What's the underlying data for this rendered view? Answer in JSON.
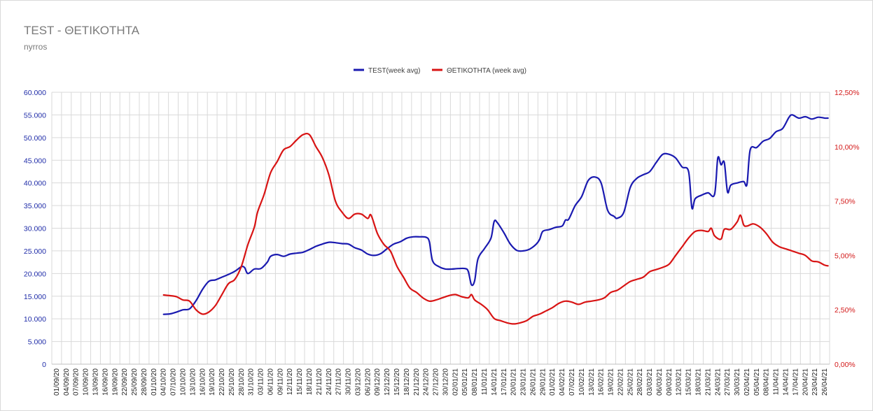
{
  "chart_data": {
    "type": "line",
    "title": "TEST - ΘΕΤΙΚΟΤΗΤΑ",
    "subtitle": "nyrros",
    "legend_position": "top-center",
    "grid": true,
    "colors": {
      "test": "#1a1ab0",
      "positivity": "#d81414",
      "grid": "#d9d9d9",
      "left_axis": "#1f2ca8",
      "right_axis": "#d31919"
    },
    "y_left": {
      "min": 0,
      "max": 60000,
      "tick_labels": [
        "0",
        "5.000",
        "10.000",
        "15.000",
        "20.000",
        "25.000",
        "30.000",
        "35.000",
        "40.000",
        "45.000",
        "50.000",
        "55.000",
        "60.000"
      ]
    },
    "y_right": {
      "min": 0,
      "max": 12.5,
      "tick_labels": [
        "0,00%",
        "2,50%",
        "5,00%",
        "7,50%",
        "10,00%",
        "12,50%"
      ]
    },
    "x_tick_labels": [
      "01/09/20",
      "04/09/20",
      "07/09/20",
      "10/09/20",
      "13/09/20",
      "16/09/20",
      "19/09/20",
      "22/09/20",
      "25/09/20",
      "28/09/20",
      "01/10/20",
      "04/10/20",
      "07/10/20",
      "10/10/20",
      "13/10/20",
      "16/10/20",
      "19/10/20",
      "22/10/20",
      "25/10/20",
      "28/10/20",
      "31/10/20",
      "03/11/20",
      "06/11/20",
      "09/11/20",
      "12/11/20",
      "15/11/20",
      "18/11/20",
      "21/11/20",
      "24/11/20",
      "27/11/20",
      "30/11/20",
      "03/12/20",
      "06/12/20",
      "09/12/20",
      "12/12/20",
      "15/12/20",
      "18/12/20",
      "21/12/20",
      "24/12/20",
      "27/12/20",
      "30/12/20",
      "02/01/21",
      "05/01/21",
      "08/01/21",
      "11/01/21",
      "14/01/21",
      "17/01/21",
      "20/01/21",
      "23/01/21",
      "26/01/21",
      "29/01/21",
      "01/02/21",
      "04/02/21",
      "07/02/21",
      "10/02/21",
      "13/02/21",
      "16/02/21",
      "19/02/21",
      "22/02/21",
      "25/02/21",
      "28/02/21",
      "03/03/21",
      "06/03/21",
      "09/03/21",
      "12/03/21",
      "15/03/21",
      "18/03/21",
      "21/03/21",
      "24/03/21",
      "27/03/21",
      "30/03/21",
      "02/04/21",
      "05/04/21",
      "08/04/21",
      "11/04/21",
      "14/04/21",
      "17/04/21",
      "20/04/21",
      "23/04/21",
      "26/04/21"
    ],
    "series": [
      {
        "name": "TEST(week avg)",
        "axis": "left",
        "points": [
          [
            "04/10/20",
            11000
          ],
          [
            "06/10/20",
            11100
          ],
          [
            "08/10/20",
            11500
          ],
          [
            "10/10/20",
            12000
          ],
          [
            "12/10/20",
            12200
          ],
          [
            "14/10/20",
            14000
          ],
          [
            "16/10/20",
            16500
          ],
          [
            "18/10/20",
            18300
          ],
          [
            "20/10/20",
            18600
          ],
          [
            "22/10/20",
            19200
          ],
          [
            "24/10/20",
            19800
          ],
          [
            "26/10/20",
            20500
          ],
          [
            "28/10/20",
            21500
          ],
          [
            "29/10/20",
            21300
          ],
          [
            "30/10/20",
            20000
          ],
          [
            "01/11/20",
            21000
          ],
          [
            "03/11/20",
            21100
          ],
          [
            "05/11/20",
            22500
          ],
          [
            "06/11/20",
            23800
          ],
          [
            "08/11/20",
            24200
          ],
          [
            "10/11/20",
            23800
          ],
          [
            "12/11/20",
            24300
          ],
          [
            "14/11/20",
            24500
          ],
          [
            "16/11/20",
            24700
          ],
          [
            "18/11/20",
            25300
          ],
          [
            "20/11/20",
            26000
          ],
          [
            "22/11/20",
            26500
          ],
          [
            "24/11/20",
            26900
          ],
          [
            "26/11/20",
            26800
          ],
          [
            "28/11/20",
            26600
          ],
          [
            "30/11/20",
            26500
          ],
          [
            "02/12/20",
            25700
          ],
          [
            "04/12/20",
            25200
          ],
          [
            "06/12/20",
            24300
          ],
          [
            "08/12/20",
            24000
          ],
          [
            "10/12/20",
            24400
          ],
          [
            "12/12/20",
            25500
          ],
          [
            "14/12/20",
            26500
          ],
          [
            "16/12/20",
            27000
          ],
          [
            "18/12/20",
            27800
          ],
          [
            "20/12/20",
            28100
          ],
          [
            "22/12/20",
            28100
          ],
          [
            "24/12/20",
            28000
          ],
          [
            "25/12/20",
            27000
          ],
          [
            "26/12/20",
            22800
          ],
          [
            "28/12/20",
            21500
          ],
          [
            "30/12/20",
            21000
          ],
          [
            "01/01/21",
            21000
          ],
          [
            "03/01/21",
            21100
          ],
          [
            "05/01/21",
            21100
          ],
          [
            "06/01/21",
            20500
          ],
          [
            "07/01/21",
            17500
          ],
          [
            "08/01/21",
            18500
          ],
          [
            "09/01/21",
            23200
          ],
          [
            "11/01/21",
            25500
          ],
          [
            "13/01/21",
            27800
          ],
          [
            "14/01/21",
            31500
          ],
          [
            "15/01/21",
            31200
          ],
          [
            "17/01/21",
            29000
          ],
          [
            "19/01/21",
            26500
          ],
          [
            "21/01/21",
            25100
          ],
          [
            "23/01/21",
            25000
          ],
          [
            "25/01/21",
            25400
          ],
          [
            "27/01/21",
            26500
          ],
          [
            "28/01/21",
            27500
          ],
          [
            "29/01/21",
            29300
          ],
          [
            "31/01/21",
            29700
          ],
          [
            "02/02/21",
            30200
          ],
          [
            "04/02/21",
            30500
          ],
          [
            "05/02/21",
            31800
          ],
          [
            "06/02/21",
            32000
          ],
          [
            "08/02/21",
            35000
          ],
          [
            "10/02/21",
            37000
          ],
          [
            "12/02/21",
            40500
          ],
          [
            "14/02/21",
            41300
          ],
          [
            "16/02/21",
            40000
          ],
          [
            "18/02/21",
            34000
          ],
          [
            "20/02/21",
            32600
          ],
          [
            "21/02/21",
            32200
          ],
          [
            "23/02/21",
            33500
          ],
          [
            "25/02/21",
            39000
          ],
          [
            "27/02/21",
            41000
          ],
          [
            "01/03/21",
            41800
          ],
          [
            "03/03/21",
            42500
          ],
          [
            "05/03/21",
            44500
          ],
          [
            "07/03/21",
            46300
          ],
          [
            "09/03/21",
            46300
          ],
          [
            "11/03/21",
            45500
          ],
          [
            "13/03/21",
            43500
          ],
          [
            "15/03/21",
            42500
          ],
          [
            "16/03/21",
            34500
          ],
          [
            "17/03/21",
            36500
          ],
          [
            "19/03/21",
            37300
          ],
          [
            "21/03/21",
            37800
          ],
          [
            "23/03/21",
            37500
          ],
          [
            "24/03/21",
            45500
          ],
          [
            "25/03/21",
            44000
          ],
          [
            "26/03/21",
            44500
          ],
          [
            "27/03/21",
            38000
          ],
          [
            "28/03/21",
            39500
          ],
          [
            "30/03/21",
            40000
          ],
          [
            "01/04/21",
            40300
          ],
          [
            "02/04/21",
            39700
          ],
          [
            "03/04/21",
            47300
          ],
          [
            "05/04/21",
            47800
          ],
          [
            "07/04/21",
            49200
          ],
          [
            "09/04/21",
            49800
          ],
          [
            "11/04/21",
            51300
          ],
          [
            "13/04/21",
            52000
          ],
          [
            "15/04/21",
            54500
          ],
          [
            "16/04/21",
            55000
          ],
          [
            "18/04/21",
            54300
          ],
          [
            "20/04/21",
            54600
          ],
          [
            "22/04/21",
            54100
          ],
          [
            "24/04/21",
            54500
          ],
          [
            "26/04/21",
            54300
          ],
          [
            "27/04/21",
            54300
          ]
        ]
      },
      {
        "name": "ΘΕΤΙΚΟΤΗΤΑ (week avg)",
        "axis": "right",
        "points": [
          [
            "04/10/20",
            3.18
          ],
          [
            "06/10/20",
            3.15
          ],
          [
            "08/10/20",
            3.1
          ],
          [
            "10/10/20",
            2.95
          ],
          [
            "12/10/20",
            2.9
          ],
          [
            "14/10/20",
            2.5
          ],
          [
            "16/10/20",
            2.3
          ],
          [
            "18/10/20",
            2.4
          ],
          [
            "20/10/20",
            2.7
          ],
          [
            "22/10/20",
            3.2
          ],
          [
            "24/10/20",
            3.7
          ],
          [
            "26/10/20",
            3.9
          ],
          [
            "28/10/20",
            4.5
          ],
          [
            "30/10/20",
            5.5
          ],
          [
            "01/11/20",
            6.3
          ],
          [
            "02/11/20",
            7.0
          ],
          [
            "04/11/20",
            7.8
          ],
          [
            "06/11/20",
            8.8
          ],
          [
            "08/11/20",
            9.3
          ],
          [
            "10/11/20",
            9.85
          ],
          [
            "12/11/20",
            10.0
          ],
          [
            "14/11/20",
            10.3
          ],
          [
            "16/11/20",
            10.55
          ],
          [
            "18/11/20",
            10.55
          ],
          [
            "20/11/20",
            10.0
          ],
          [
            "22/11/20",
            9.5
          ],
          [
            "24/11/20",
            8.7
          ],
          [
            "26/11/20",
            7.5
          ],
          [
            "28/11/20",
            7.0
          ],
          [
            "30/11/20",
            6.7
          ],
          [
            "02/12/20",
            6.9
          ],
          [
            "04/12/20",
            6.9
          ],
          [
            "06/12/20",
            6.7
          ],
          [
            "07/12/20",
            6.85
          ],
          [
            "09/12/20",
            6.0
          ],
          [
            "11/12/20",
            5.5
          ],
          [
            "13/12/20",
            5.2
          ],
          [
            "15/12/20",
            4.5
          ],
          [
            "17/12/20",
            4.0
          ],
          [
            "19/12/20",
            3.5
          ],
          [
            "21/12/20",
            3.3
          ],
          [
            "23/12/20",
            3.05
          ],
          [
            "25/12/20",
            2.9
          ],
          [
            "27/12/20",
            2.95
          ],
          [
            "29/12/20",
            3.05
          ],
          [
            "31/12/20",
            3.15
          ],
          [
            "02/01/21",
            3.2
          ],
          [
            "04/01/21",
            3.1
          ],
          [
            "06/01/21",
            3.05
          ],
          [
            "07/01/21",
            3.2
          ],
          [
            "08/01/21",
            2.95
          ],
          [
            "10/01/21",
            2.75
          ],
          [
            "12/01/21",
            2.5
          ],
          [
            "14/01/21",
            2.1
          ],
          [
            "16/01/21",
            2.0
          ],
          [
            "18/01/21",
            1.9
          ],
          [
            "20/01/21",
            1.85
          ],
          [
            "22/01/21",
            1.9
          ],
          [
            "24/01/21",
            2.0
          ],
          [
            "26/01/21",
            2.2
          ],
          [
            "28/01/21",
            2.3
          ],
          [
            "30/01/21",
            2.45
          ],
          [
            "01/02/21",
            2.6
          ],
          [
            "03/02/21",
            2.8
          ],
          [
            "05/02/21",
            2.9
          ],
          [
            "07/02/21",
            2.85
          ],
          [
            "09/02/21",
            2.75
          ],
          [
            "11/02/21",
            2.85
          ],
          [
            "13/02/21",
            2.9
          ],
          [
            "15/02/21",
            2.95
          ],
          [
            "17/02/21",
            3.05
          ],
          [
            "19/02/21",
            3.3
          ],
          [
            "21/02/21",
            3.4
          ],
          [
            "23/02/21",
            3.6
          ],
          [
            "25/02/21",
            3.8
          ],
          [
            "27/02/21",
            3.9
          ],
          [
            "01/03/21",
            4.0
          ],
          [
            "03/03/21",
            4.25
          ],
          [
            "05/03/21",
            4.35
          ],
          [
            "07/03/21",
            4.45
          ],
          [
            "09/03/21",
            4.6
          ],
          [
            "11/03/21",
            5.0
          ],
          [
            "13/03/21",
            5.4
          ],
          [
            "15/03/21",
            5.8
          ],
          [
            "17/03/21",
            6.1
          ],
          [
            "19/03/21",
            6.15
          ],
          [
            "21/03/21",
            6.1
          ],
          [
            "22/03/21",
            6.25
          ],
          [
            "23/03/21",
            5.9
          ],
          [
            "25/03/21",
            5.75
          ],
          [
            "26/03/21",
            6.2
          ],
          [
            "28/03/21",
            6.2
          ],
          [
            "30/03/21",
            6.55
          ],
          [
            "31/03/21",
            6.85
          ],
          [
            "01/04/21",
            6.4
          ],
          [
            "02/04/21",
            6.35
          ],
          [
            "04/04/21",
            6.45
          ],
          [
            "06/04/21",
            6.3
          ],
          [
            "08/04/21",
            6.0
          ],
          [
            "10/04/21",
            5.6
          ],
          [
            "12/04/21",
            5.4
          ],
          [
            "14/04/21",
            5.3
          ],
          [
            "16/04/21",
            5.2
          ],
          [
            "18/04/21",
            5.1
          ],
          [
            "20/04/21",
            5.0
          ],
          [
            "22/04/21",
            4.75
          ],
          [
            "24/04/21",
            4.7
          ],
          [
            "26/04/21",
            4.55
          ],
          [
            "27/04/21",
            4.52
          ]
        ]
      }
    ]
  }
}
